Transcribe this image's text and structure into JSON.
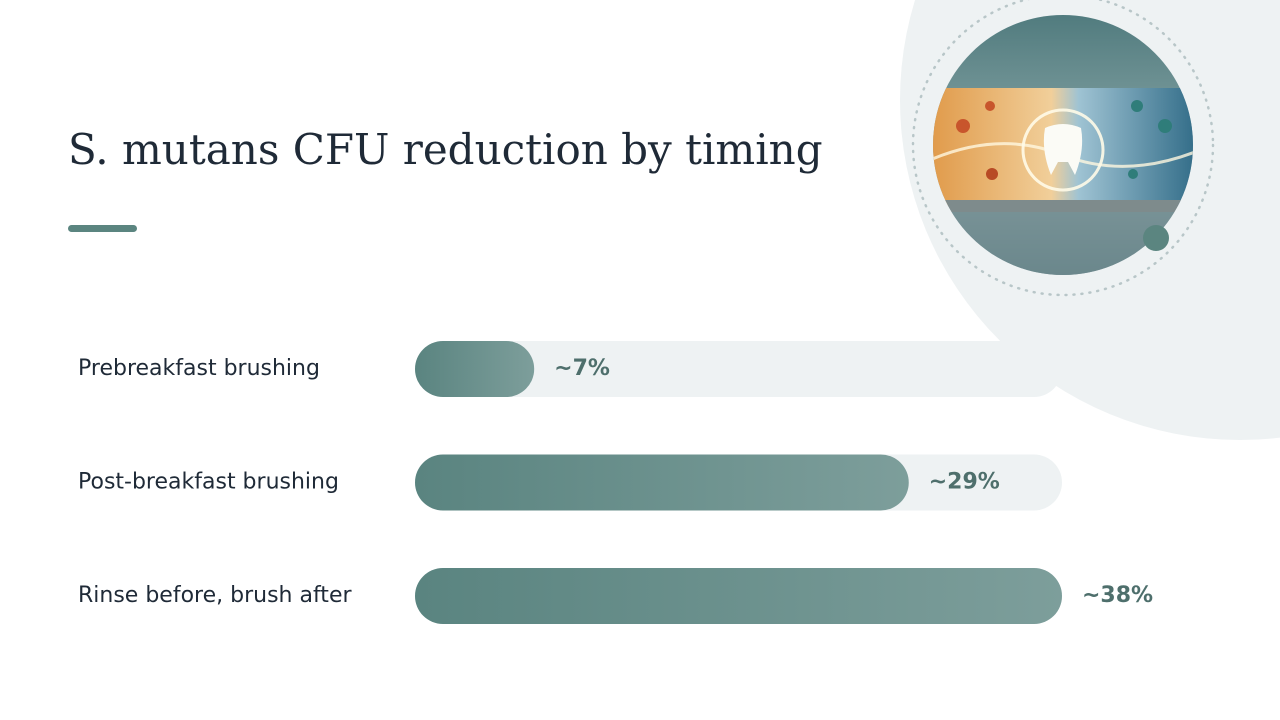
{
  "chart_data": {
    "type": "bar",
    "orientation": "horizontal",
    "title": "S. mutans CFU reduction by timing",
    "categories": [
      "Prebreakfast brushing",
      "Post-breakfast brushing",
      "Rinse before, brush after"
    ],
    "values": [
      7,
      29,
      38
    ],
    "value_labels": [
      "~7%",
      "~29%",
      "~38%"
    ],
    "color": "#5b8580"
  }
}
